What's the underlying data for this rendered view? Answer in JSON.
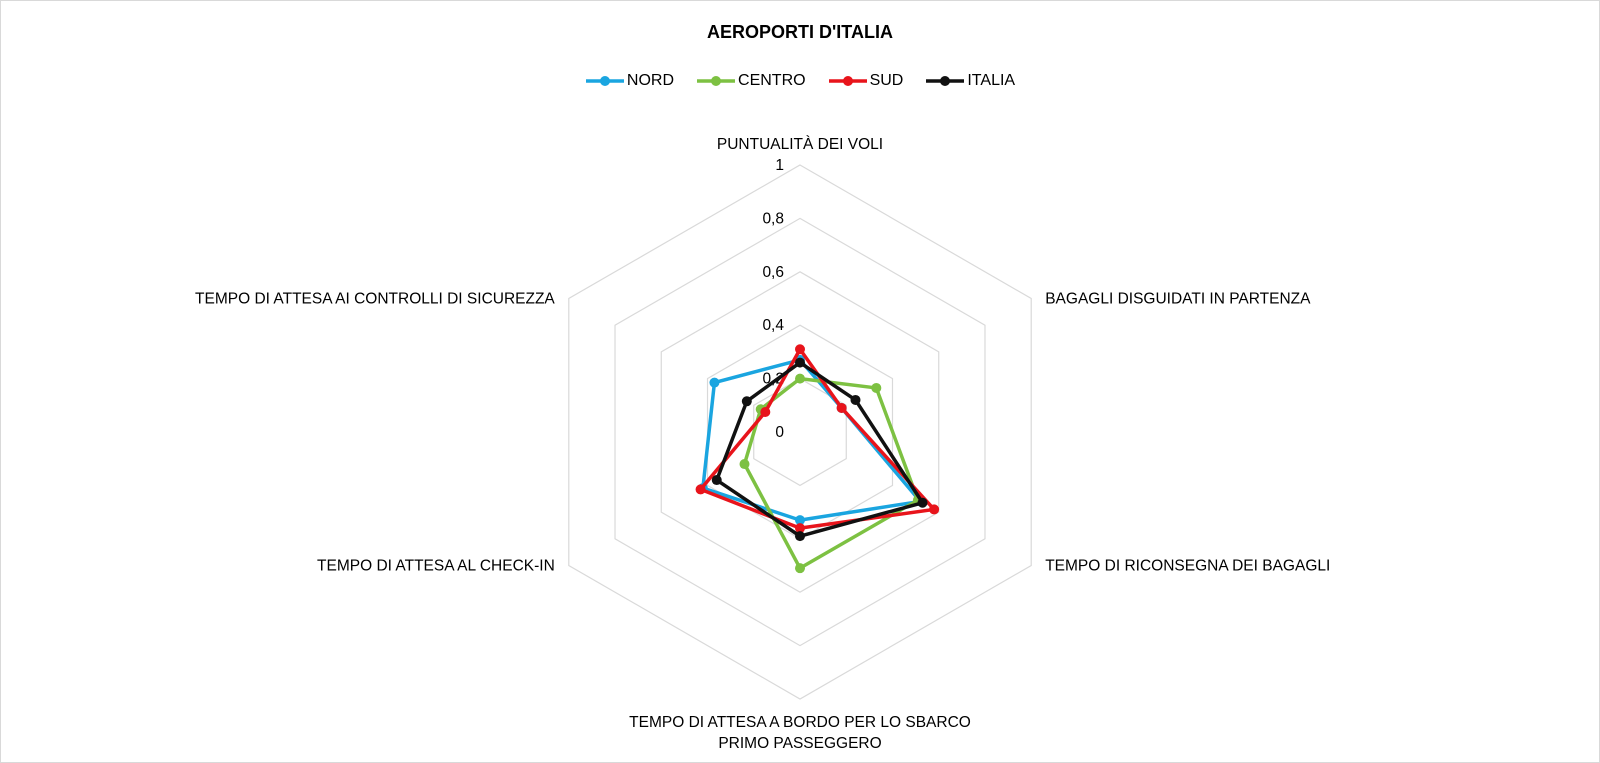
{
  "chart_data": {
    "type": "radar",
    "title": "AEROPORTI D'ITALIA",
    "axes": [
      [
        "PUNTUALITÀ DEI VOLI"
      ],
      [
        "BAGAGLI DISGUIDATI IN PARTENZA"
      ],
      [
        "TEMPO DI RICONSEGNA DEI BAGAGLI"
      ],
      [
        "TEMPO DI ATTESA A BORDO PER LO SBARCO",
        "PRIMO PASSEGGERO"
      ],
      [
        "TEMPO DI ATTESA AL CHECK-IN"
      ],
      [
        "TEMPO DI ATTESA AI CONTROLLI DI SICUREZZA"
      ]
    ],
    "tick_labels": [
      "0",
      "0,2",
      "0,4",
      "0,6",
      "0,8",
      "1"
    ],
    "ticks": [
      0,
      0.2,
      0.4,
      0.6,
      0.8,
      1
    ],
    "range": [
      0,
      1
    ],
    "grid": true,
    "legend_position": "top",
    "series": [
      {
        "name": "NORD",
        "color": "#1AA5E0",
        "values": [
          0.27,
          0.18,
          0.52,
          0.33,
          0.42,
          0.37
        ]
      },
      {
        "name": "CENTRO",
        "color": "#7DC142",
        "values": [
          0.2,
          0.33,
          0.51,
          0.51,
          0.24,
          0.17
        ]
      },
      {
        "name": "SUD",
        "color": "#E8141B",
        "values": [
          0.31,
          0.18,
          0.58,
          0.36,
          0.43,
          0.15
        ]
      },
      {
        "name": "ITALIA",
        "color": "#111111",
        "values": [
          0.26,
          0.24,
          0.53,
          0.39,
          0.36,
          0.23
        ]
      }
    ]
  }
}
